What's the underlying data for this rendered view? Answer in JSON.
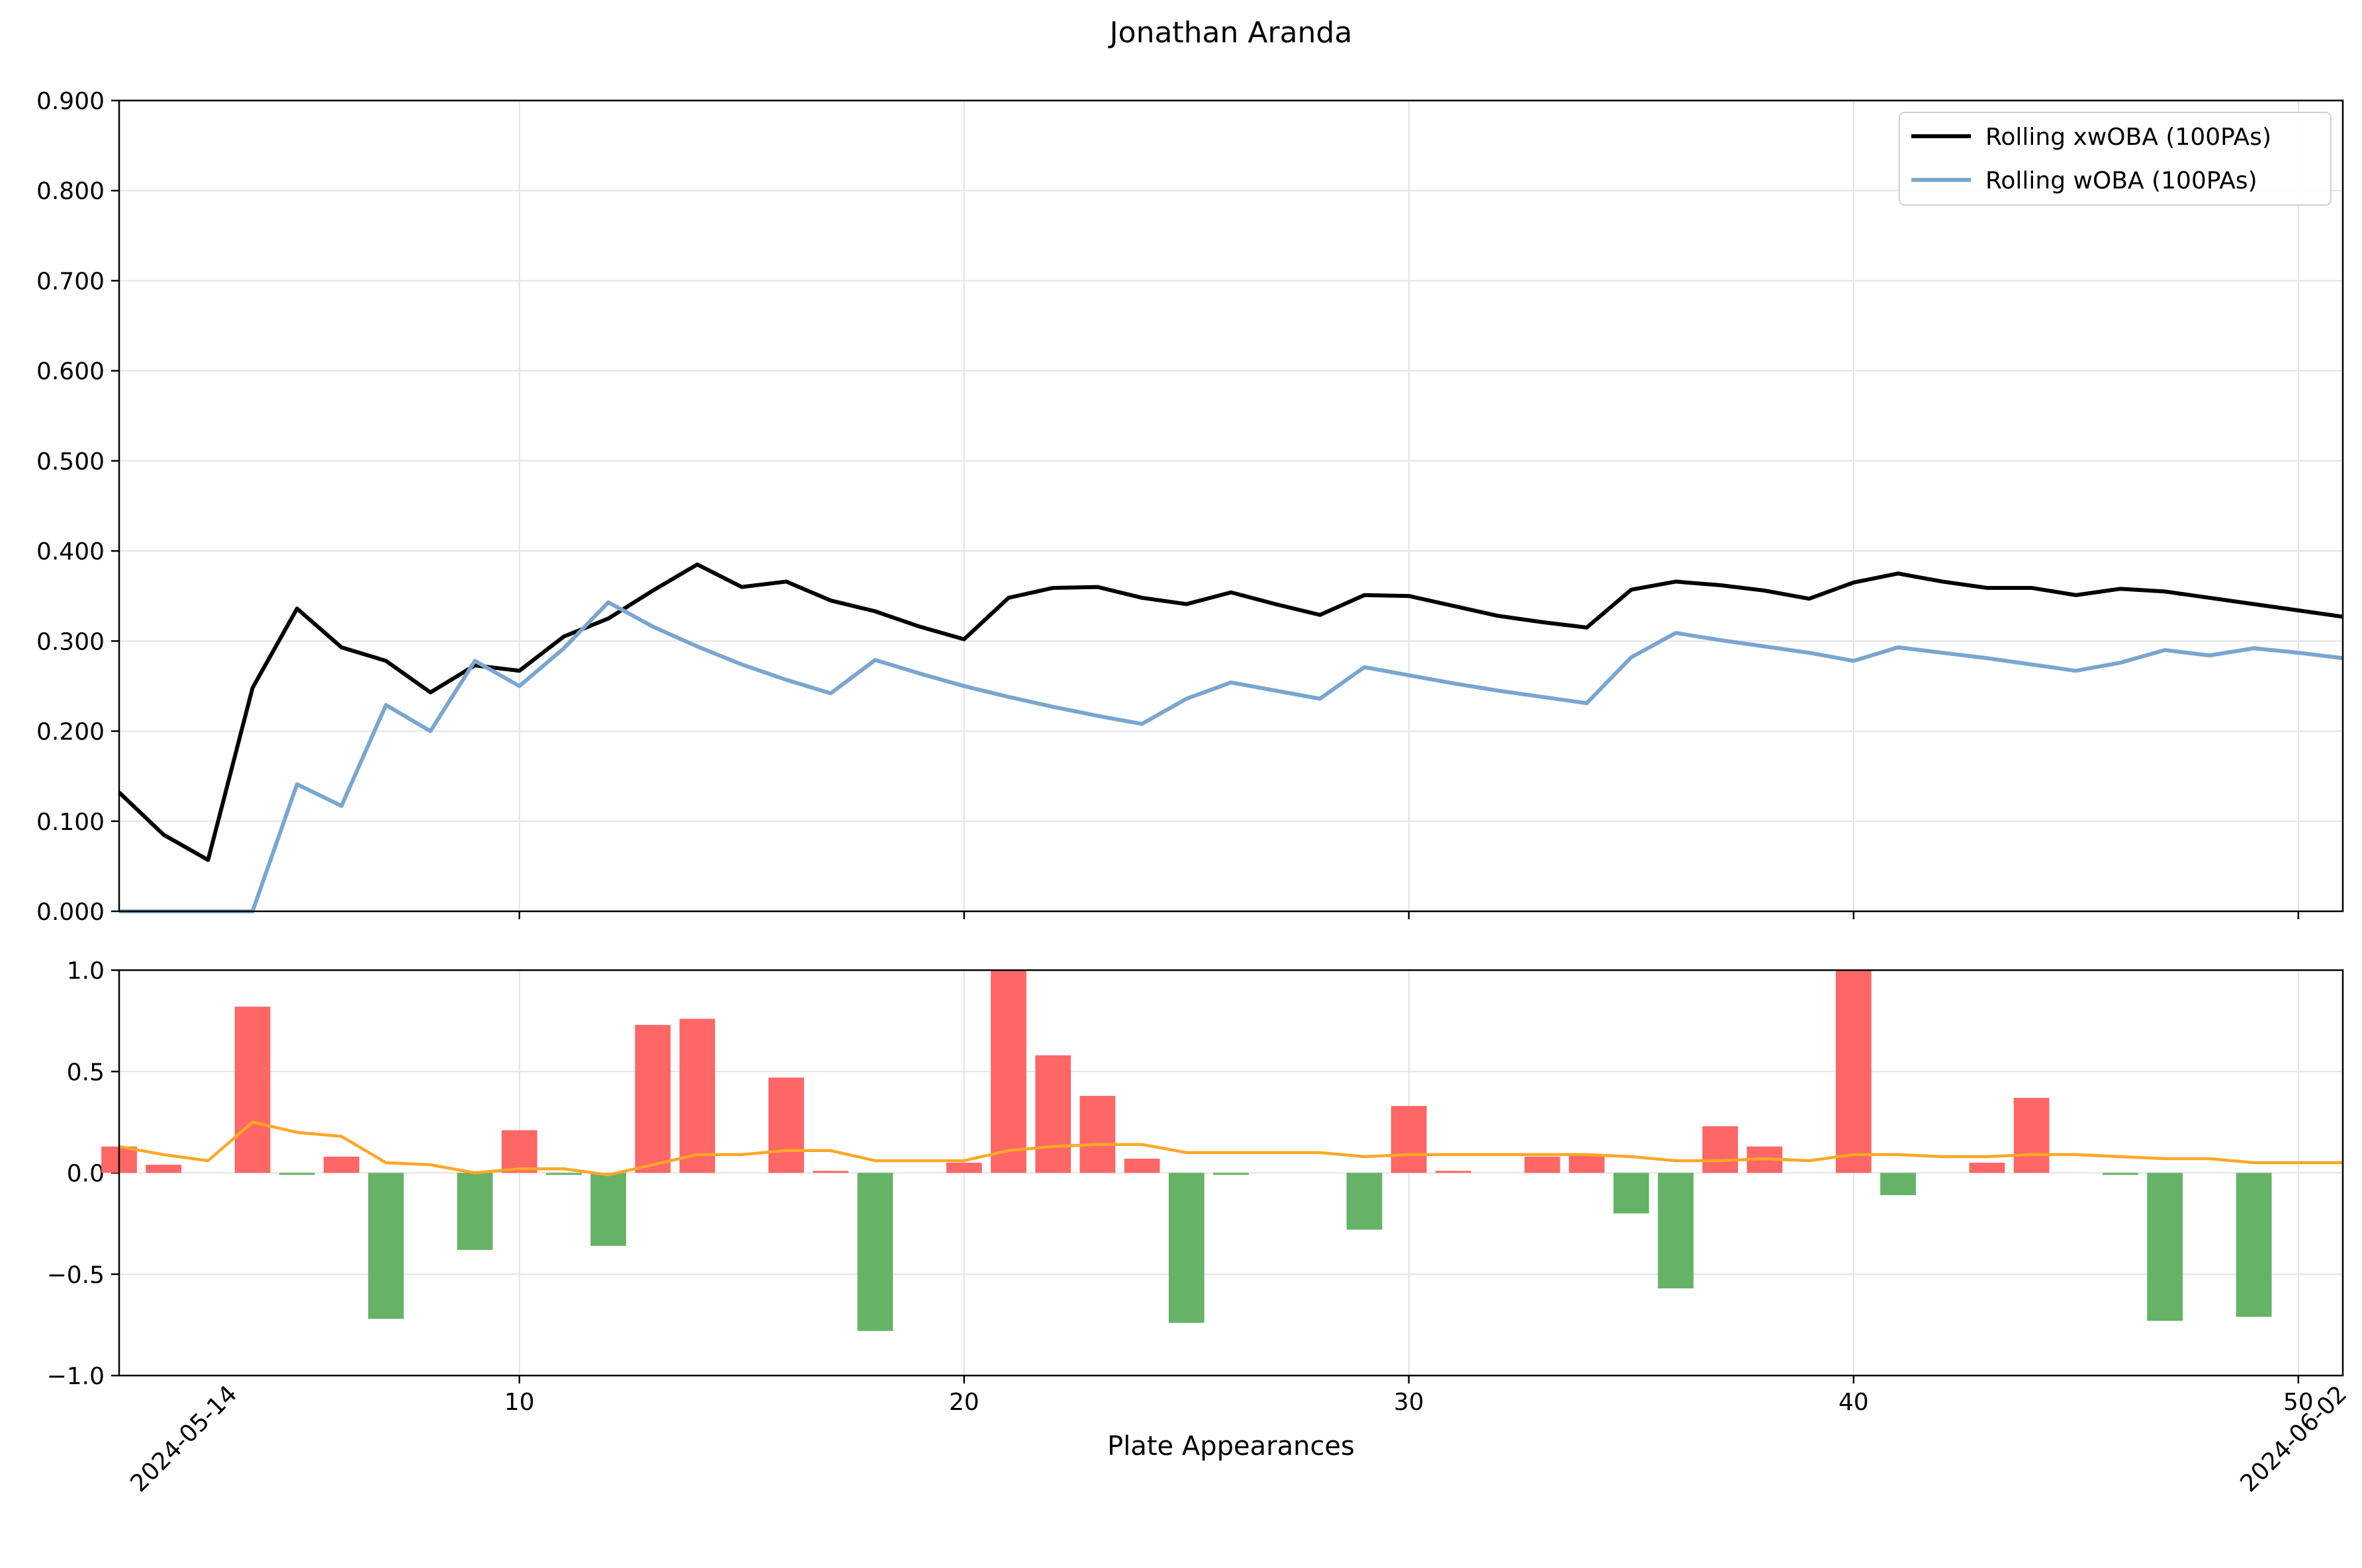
{
  "chart_data": [
    {
      "type": "line",
      "title": "Jonathan Aranda",
      "xlabel": "",
      "ylabel": "",
      "xlim": [
        1,
        51
      ],
      "ylim": [
        0,
        0.9
      ],
      "yticks": [
        "0.000",
        "0.100",
        "0.200",
        "0.300",
        "0.400",
        "0.500",
        "0.600",
        "0.700",
        "0.800",
        "0.900"
      ],
      "grid": true,
      "legend_position": "top-right",
      "series": [
        {
          "name": "Rolling xwOBA (100PAs)",
          "color": "#000000",
          "x": [
            1,
            2,
            3,
            4,
            5,
            6,
            7,
            8,
            9,
            10,
            11,
            12,
            13,
            14,
            15,
            16,
            17,
            18,
            19,
            20,
            21,
            22,
            23,
            24,
            25,
            26,
            27,
            28,
            29,
            30,
            31,
            32,
            33,
            34,
            35,
            36,
            37,
            38,
            39,
            40,
            41,
            42,
            43,
            44,
            45,
            46,
            47,
            48,
            49,
            50,
            51
          ],
          "values": [
            0.132,
            0.085,
            0.057,
            0.248,
            0.336,
            0.293,
            0.278,
            0.243,
            0.273,
            0.267,
            0.305,
            0.325,
            0.356,
            0.385,
            0.36,
            0.366,
            0.345,
            0.333,
            0.316,
            0.302,
            0.348,
            0.359,
            0.36,
            0.348,
            0.341,
            0.354,
            0.341,
            0.329,
            0.351,
            0.35,
            0.339,
            0.328,
            0.321,
            0.315,
            0.357,
            0.366,
            0.362,
            0.356,
            0.347,
            0.365,
            0.375,
            0.366,
            0.359,
            0.359,
            0.351,
            0.358,
            0.355,
            0.348,
            0.341,
            0.334,
            0.327
          ]
        },
        {
          "name": "Rolling wOBA (100PAs)",
          "color": "#78a6d0",
          "x": [
            1,
            2,
            3,
            4,
            5,
            6,
            7,
            8,
            9,
            10,
            11,
            12,
            13,
            14,
            15,
            16,
            17,
            18,
            19,
            20,
            21,
            22,
            23,
            24,
            25,
            26,
            27,
            28,
            29,
            30,
            31,
            32,
            33,
            34,
            35,
            36,
            37,
            38,
            39,
            40,
            41,
            42,
            43,
            44,
            45,
            46,
            47,
            48,
            49,
            50,
            51
          ],
          "values": [
            0.0,
            0.0,
            0.0,
            0.0,
            0.141,
            0.117,
            0.229,
            0.2,
            0.278,
            0.25,
            0.292,
            0.343,
            0.316,
            0.294,
            0.274,
            0.257,
            0.242,
            0.279,
            0.264,
            0.25,
            0.238,
            0.227,
            0.217,
            0.208,
            0.236,
            0.254,
            0.245,
            0.236,
            0.271,
            0.262,
            0.253,
            0.245,
            0.238,
            0.231,
            0.282,
            0.309,
            0.301,
            0.294,
            0.287,
            0.278,
            0.293,
            0.287,
            0.281,
            0.274,
            0.267,
            0.276,
            0.29,
            0.284,
            0.292,
            0.287,
            0.281
          ]
        }
      ]
    },
    {
      "type": "bar",
      "xlabel": "Plate Appearances",
      "ylabel": "",
      "xlim": [
        1,
        51
      ],
      "ylim": [
        -1,
        1
      ],
      "xticks": [
        "10",
        "20",
        "30",
        "40",
        "50"
      ],
      "xtick_values": [
        10,
        20,
        30,
        40,
        50
      ],
      "yticks": [
        "−1.0",
        "−0.5",
        "0.0",
        "0.5",
        "1.0"
      ],
      "date_labels": [
        "2024-05-14",
        "2024-06-02"
      ],
      "grid": true,
      "positive_color": "#ff6666",
      "negative_color": "#66b266",
      "x": [
        1,
        2,
        3,
        4,
        5,
        6,
        7,
        8,
        9,
        10,
        11,
        12,
        13,
        14,
        15,
        16,
        17,
        18,
        19,
        20,
        21,
        22,
        23,
        24,
        25,
        26,
        27,
        28,
        29,
        30,
        31,
        32,
        33,
        34,
        35,
        36,
        37,
        38,
        39,
        40,
        41,
        42,
        43,
        44,
        45,
        46,
        47,
        48,
        49,
        50,
        51
      ],
      "values": [
        0.13,
        0.04,
        0.0,
        0.82,
        -0.01,
        0.08,
        -0.72,
        0.0,
        -0.38,
        0.21,
        -0.01,
        -0.36,
        0.73,
        0.76,
        0.0,
        0.47,
        0.01,
        -0.78,
        0.0,
        0.05,
        1.0,
        0.58,
        0.38,
        0.07,
        -0.74,
        -0.01,
        0.0,
        0.0,
        -0.28,
        0.33,
        0.01,
        0.0,
        0.08,
        0.09,
        -0.2,
        -0.57,
        0.23,
        0.13,
        0.0,
        1.0,
        -0.11,
        0.0,
        0.05,
        0.37,
        0.0,
        -0.01,
        -0.73,
        0.0,
        -0.71,
        0.0,
        0.0
      ],
      "line_series": {
        "color": "#ffa726",
        "values": [
          0.13,
          0.09,
          0.06,
          0.25,
          0.2,
          0.18,
          0.05,
          0.04,
          0.0,
          0.02,
          0.02,
          -0.01,
          0.04,
          0.09,
          0.09,
          0.11,
          0.11,
          0.06,
          0.06,
          0.06,
          0.11,
          0.13,
          0.14,
          0.14,
          0.1,
          0.1,
          0.1,
          0.1,
          0.08,
          0.09,
          0.09,
          0.09,
          0.09,
          0.09,
          0.08,
          0.06,
          0.06,
          0.07,
          0.06,
          0.09,
          0.09,
          0.08,
          0.08,
          0.09,
          0.09,
          0.08,
          0.07,
          0.07,
          0.05,
          0.05,
          0.05
        ]
      }
    }
  ]
}
